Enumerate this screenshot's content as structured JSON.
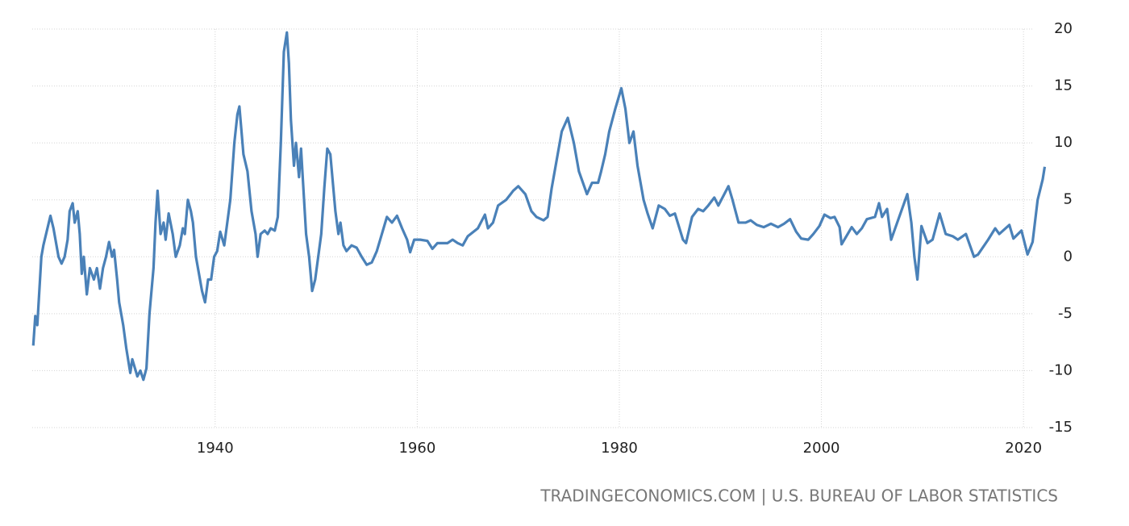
{
  "chart_data": {
    "type": "line",
    "x": [
      1922.0,
      1922.2,
      1922.4,
      1922.8,
      1923.0,
      1923.7,
      1924.0,
      1924.5,
      1924.8,
      1925.1,
      1925.4,
      1925.6,
      1925.9,
      1926.1,
      1926.4,
      1926.6,
      1926.8,
      1927.0,
      1927.3,
      1927.6,
      1928.0,
      1928.3,
      1928.6,
      1928.9,
      1929.2,
      1929.5,
      1929.8,
      1930.0,
      1930.3,
      1930.5,
      1930.9,
      1931.2,
      1931.6,
      1931.8,
      1932.3,
      1932.6,
      1932.9,
      1933.2,
      1933.5,
      1933.9,
      1934.1,
      1934.3,
      1934.6,
      1934.9,
      1935.1,
      1935.4,
      1935.8,
      1936.1,
      1936.5,
      1936.8,
      1937.0,
      1937.3,
      1937.6,
      1937.8,
      1938.1,
      1938.4,
      1938.7,
      1939.0,
      1939.3,
      1939.6,
      1939.9,
      1940.2,
      1940.5,
      1940.9,
      1941.2,
      1941.5,
      1941.9,
      1942.2,
      1942.4,
      1942.8,
      1943.2,
      1943.6,
      1944.0,
      1944.2,
      1944.5,
      1944.9,
      1945.2,
      1945.5,
      1945.9,
      1946.2,
      1946.5,
      1946.8,
      1947.1,
      1947.3,
      1947.5,
      1947.8,
      1948.0,
      1948.3,
      1948.5,
      1948.8,
      1949.0,
      1949.3,
      1949.6,
      1949.9,
      1950.2,
      1950.5,
      1950.8,
      1951.1,
      1951.4,
      1951.7,
      1951.9,
      1952.2,
      1952.4,
      1952.7,
      1953.0,
      1953.5,
      1954.0,
      1954.5,
      1955.0,
      1955.5,
      1956.0,
      1956.5,
      1957.0,
      1957.5,
      1958.0,
      1958.5,
      1959.0,
      1959.3,
      1959.7,
      1960.3,
      1961.0,
      1961.5,
      1962.0,
      1962.5,
      1963.0,
      1963.5,
      1964.0,
      1964.5,
      1965.0,
      1966.0,
      1966.7,
      1967.0,
      1967.5,
      1968.0,
      1968.8,
      1969.5,
      1970.0,
      1970.7,
      1971.3,
      1971.8,
      1972.5,
      1972.9,
      1973.3,
      1973.8,
      1974.3,
      1974.9,
      1975.5,
      1976.0,
      1976.8,
      1977.3,
      1977.9,
      1978.2,
      1978.6,
      1979.0,
      1979.6,
      1980.2,
      1980.6,
      1981.0,
      1981.4,
      1981.8,
      1982.4,
      1982.8,
      1983.3,
      1983.9,
      1984.5,
      1985.0,
      1985.5,
      1986.3,
      1986.6,
      1987.2,
      1987.8,
      1988.3,
      1988.8,
      1989.4,
      1989.8,
      1990.8,
      1991.2,
      1991.8,
      1992.5,
      1993.0,
      1993.6,
      1994.3,
      1995.0,
      1995.7,
      1996.3,
      1996.9,
      1997.5,
      1998.0,
      1998.7,
      1999.2,
      1999.8,
      2000.3,
      2000.9,
      2001.3,
      2001.8,
      2002.0,
      2002.6,
      2003.0,
      2003.5,
      2004.0,
      2004.5,
      2005.3,
      2005.7,
      2006.0,
      2006.5,
      2006.9,
      2007.3,
      2007.9,
      2008.5,
      2008.9,
      2009.2,
      2009.5,
      2009.9,
      2010.5,
      2011.0,
      2011.7,
      2012.3,
      2013.0,
      2013.5,
      2014.3,
      2015.1,
      2015.5,
      2016.5,
      2017.2,
      2017.6,
      2018.6,
      2019.0,
      2019.8,
      2020.4,
      2020.9,
      2021.4,
      2021.9,
      2022.1
    ],
    "series": [
      {
        "color": "#4a81b8",
        "values": [
          -7.8,
          -5.2,
          -6.0,
          0,
          1,
          3.6,
          2.5,
          0,
          -0.6,
          0,
          1.5,
          4,
          4.7,
          3,
          4,
          2,
          -1.5,
          0,
          -3.3,
          -1,
          -2,
          -1,
          -2.8,
          -1,
          0,
          1.3,
          0,
          0.6,
          -2,
          -4,
          -6,
          -8,
          -10.2,
          -9,
          -10.5,
          -10,
          -10.8,
          -9.8,
          -5,
          -1,
          3,
          5.8,
          2,
          3,
          1.5,
          3.8,
          2,
          0,
          1,
          2.5,
          2,
          5,
          4,
          3,
          0,
          -1.5,
          -3,
          -4,
          -2,
          -2,
          0,
          0.5,
          2.2,
          1,
          3,
          5,
          10,
          12.5,
          13.2,
          9,
          7.5,
          4,
          2,
          0,
          2,
          2.3,
          2,
          2.5,
          2.3,
          3.5,
          10,
          18,
          19.7,
          17,
          12,
          8,
          10,
          7,
          9.5,
          5,
          2,
          0,
          -3,
          -2,
          0,
          2,
          6,
          9.5,
          9,
          6,
          4,
          2,
          3,
          1,
          0.5,
          1,
          0.8,
          0,
          -0.7,
          -0.5,
          0.5,
          2,
          3.5,
          3,
          3.6,
          2.5,
          1.5,
          0.4,
          1.5,
          1.5,
          1.4,
          0.7,
          1.2,
          1.2,
          1.2,
          1.5,
          1.2,
          1.0,
          1.8,
          2.5,
          3.7,
          2.5,
          3.0,
          4.5,
          5.0,
          5.8,
          6.2,
          5.5,
          4,
          3.5,
          3.2,
          3.5,
          6,
          8.5,
          11,
          12.2,
          10,
          7.5,
          5.5,
          6.5,
          6.5,
          7.5,
          9,
          11,
          13,
          14.8,
          13,
          10,
          11,
          8,
          5,
          3.8,
          2.5,
          4.5,
          4.2,
          3.6,
          3.8,
          1.5,
          1.2,
          3.5,
          4.2,
          4.0,
          4.5,
          5.2,
          4.5,
          6.2,
          5,
          3,
          3,
          3.2,
          2.8,
          2.6,
          2.9,
          2.6,
          2.9,
          3.3,
          2.2,
          1.6,
          1.5,
          2.0,
          2.7,
          3.7,
          3.4,
          3.5,
          2.6,
          1.1,
          2.0,
          2.6,
          2.0,
          2.5,
          3.3,
          3.5,
          4.7,
          3.5,
          4.2,
          1.5,
          2.5,
          4.0,
          5.5,
          3.0,
          0,
          -2.0,
          2.7,
          1.2,
          1.5,
          3.8,
          2.0,
          1.8,
          1.5,
          2.0,
          0,
          0.2,
          1.5,
          2.5,
          2.0,
          2.8,
          1.6,
          2.3,
          0.2,
          1.3,
          5.0,
          6.8,
          7.9
        ]
      }
    ],
    "xlim": [
      1921.9,
      2022.3
    ],
    "ylim": [
      -15,
      20
    ],
    "xticks": [
      1940,
      1960,
      1980,
      2000,
      2020
    ],
    "yticks": [
      -15,
      -10,
      -5,
      0,
      5,
      10,
      15,
      20
    ],
    "grid": true,
    "source": "TRADINGECONOMICS.COM | U.S. BUREAU OF LABOR STATISTICS"
  }
}
